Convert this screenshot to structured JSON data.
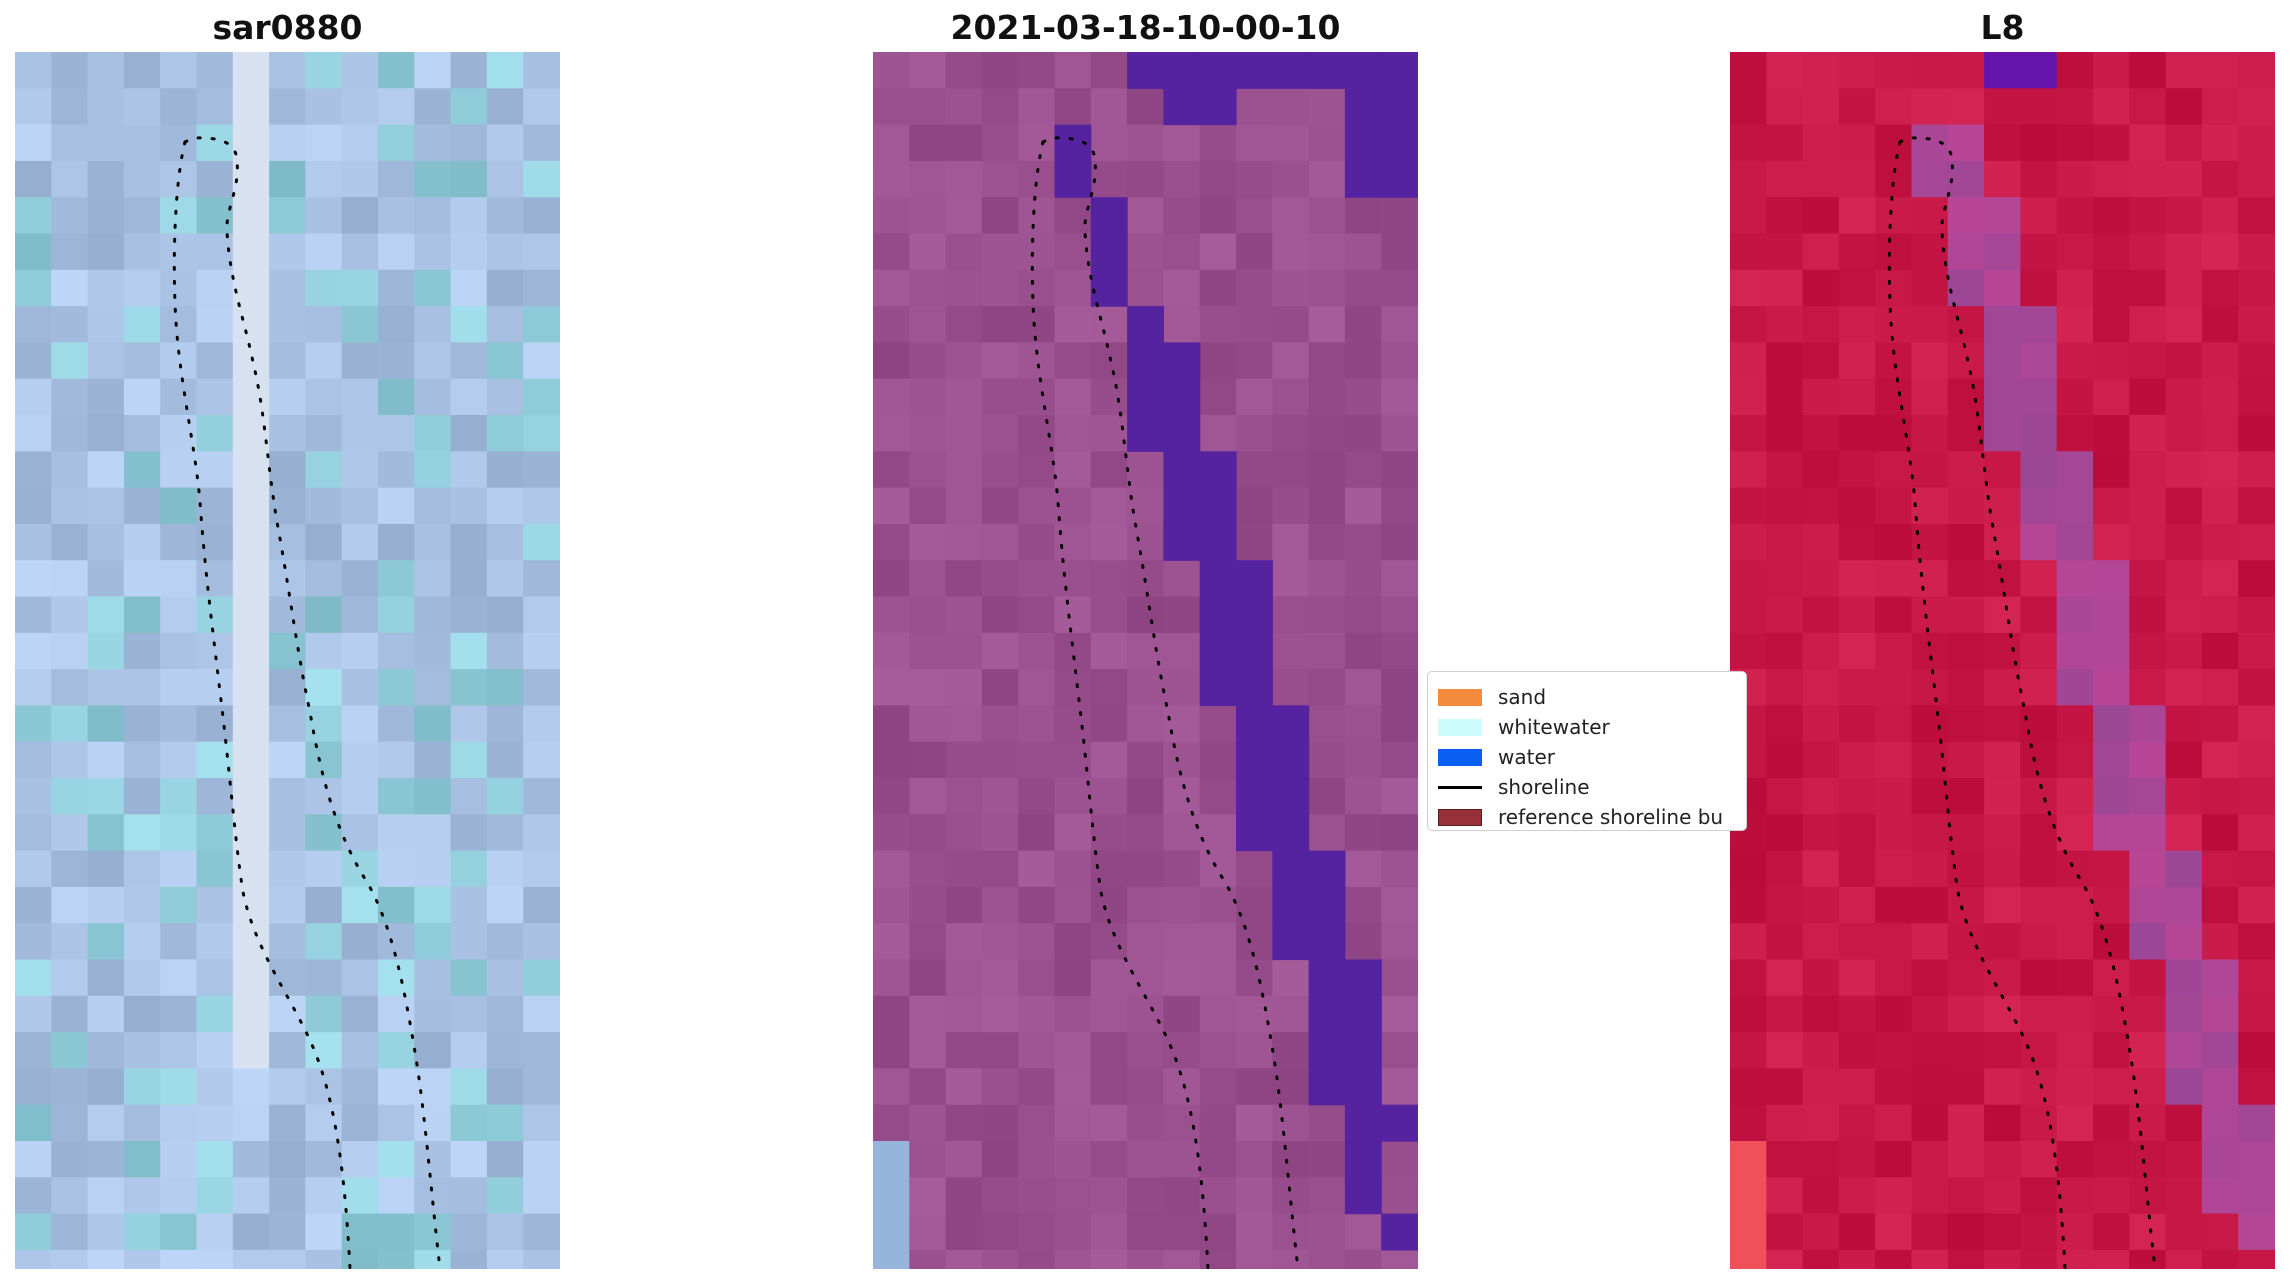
{
  "panels": [
    {
      "id": "sar",
      "title": "sar0880"
    },
    {
      "id": "classified",
      "title": "2021-03-18-10-00-10"
    },
    {
      "id": "l8",
      "title": "L8"
    }
  ],
  "legend": {
    "items": [
      {
        "label": "sand",
        "color": "#f58b3c",
        "kind": "patch"
      },
      {
        "label": "whitewater",
        "color": "#ccfcfc",
        "kind": "patch"
      },
      {
        "label": "water",
        "color": "#0a5ff2",
        "kind": "patch"
      },
      {
        "label": "shoreline",
        "color": "#000000",
        "kind": "line"
      },
      {
        "label": "reference shoreline bu",
        "color": "#973038",
        "kind": "patch"
      }
    ]
  },
  "colors": {
    "sar_base": "#a9c3e3",
    "classified_base": "#9a4f8e",
    "water_class": "#5523a0",
    "l8_base": "#c81848",
    "shoreline": "#000000"
  }
}
